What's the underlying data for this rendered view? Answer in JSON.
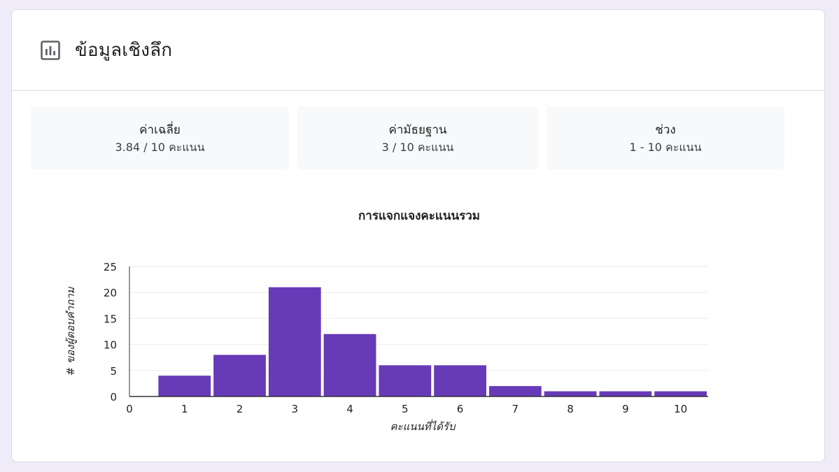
{
  "header": {
    "title": "ข้อมูลเชิงลึก",
    "icon": "bar-chart-icon"
  },
  "stats": [
    {
      "label": "ค่าเฉลี่ย",
      "value": "3.84 / 10 คะแนน"
    },
    {
      "label": "ค่ามัธยฐาน",
      "value": "3 / 10 คะแนน"
    },
    {
      "label": "ช่วง",
      "value": "1 - 10 คะแนน"
    }
  ],
  "chart_data": {
    "type": "bar",
    "title": "การแจกแจงคะแนนรวม",
    "xlabel": "คะแนนที่ได้รับ",
    "ylabel": "# ของผู้ตอบคำถาม",
    "categories": [
      1,
      2,
      3,
      4,
      5,
      6,
      7,
      8,
      9,
      10
    ],
    "values": [
      4,
      8,
      21,
      12,
      6,
      6,
      2,
      1,
      1,
      1
    ],
    "x_ticks": [
      "0",
      "1",
      "2",
      "3",
      "4",
      "5",
      "6",
      "7",
      "8",
      "9",
      "10"
    ],
    "y_ticks": [
      "0",
      "5",
      "10",
      "15",
      "20",
      "25"
    ],
    "xlim": [
      0,
      10.5
    ],
    "ylim": [
      0,
      25
    ],
    "grid": true,
    "legend": "none",
    "bar_color": "#673ab7"
  }
}
